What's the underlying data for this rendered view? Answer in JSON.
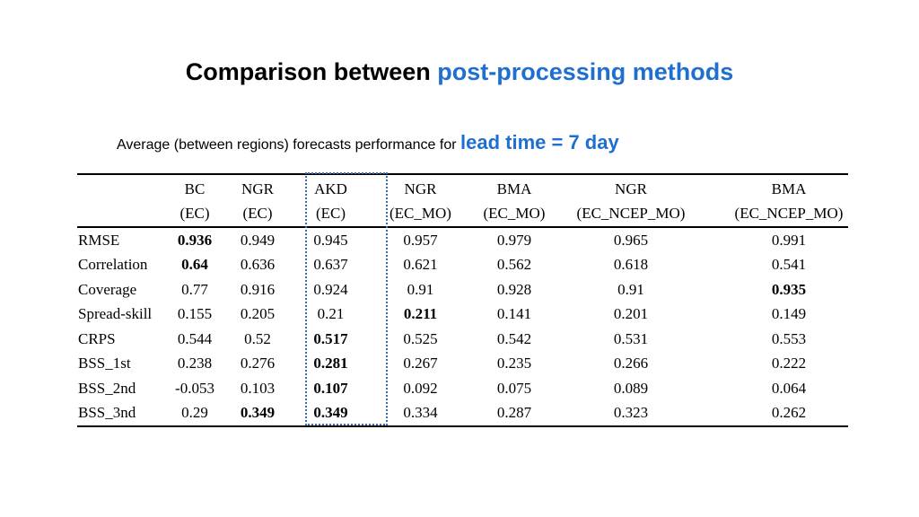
{
  "title": {
    "prefix": "Comparison between ",
    "highlight": "post-processing methods"
  },
  "subtitle": {
    "prefix": "Average (between regions) forecasts performance for ",
    "highlight": "lead time = 7 day"
  },
  "table": {
    "header_row1": [
      "",
      "BC",
      "NGR",
      "AKD",
      "NGR",
      "BMA",
      "NGR",
      "BMA"
    ],
    "header_row2": [
      "",
      "(EC)",
      "(EC)",
      "(EC)",
      "(EC_MO)",
      "(EC_MO)",
      "(EC_NCEP_MO)",
      "(EC_NCEP_MO)"
    ],
    "rows": [
      {
        "label": "RMSE",
        "values": [
          "0.936",
          "0.949",
          "0.945",
          "0.957",
          "0.979",
          "0.965",
          "0.991"
        ],
        "bold": [
          0
        ]
      },
      {
        "label": "Correlation",
        "values": [
          "0.64",
          "0.636",
          "0.637",
          "0.621",
          "0.562",
          "0.618",
          "0.541"
        ],
        "bold": [
          0
        ]
      },
      {
        "label": "Coverage",
        "values": [
          "0.77",
          "0.916",
          "0.924",
          "0.91",
          "0.928",
          "0.91",
          "0.935"
        ],
        "bold": [
          6
        ]
      },
      {
        "label": "Spread-skill",
        "values": [
          "0.155",
          "0.205",
          "0.21",
          "0.211",
          "0.141",
          "0.201",
          "0.149"
        ],
        "bold": [
          3
        ]
      },
      {
        "label": "CRPS",
        "values": [
          "0.544",
          "0.52",
          "0.517",
          "0.525",
          "0.542",
          "0.531",
          "0.553"
        ],
        "bold": [
          2
        ]
      },
      {
        "label": "BSS_1st",
        "values": [
          "0.238",
          "0.276",
          "0.281",
          "0.267",
          "0.235",
          "0.266",
          "0.222"
        ],
        "bold": [
          2
        ]
      },
      {
        "label": "BSS_2nd",
        "values": [
          "-0.053",
          "0.103",
          "0.107",
          "0.092",
          "0.075",
          "0.089",
          "0.064"
        ],
        "bold": [
          2
        ]
      },
      {
        "label": "BSS_3nd",
        "values": [
          "0.29",
          "0.349",
          "0.349",
          "0.334",
          "0.287",
          "0.323",
          "0.262"
        ],
        "bold": [
          1,
          2
        ]
      }
    ],
    "highlight_column": "AKD",
    "highlight_color": "#3b6fb0"
  },
  "accent_color": "#1f6fd1"
}
